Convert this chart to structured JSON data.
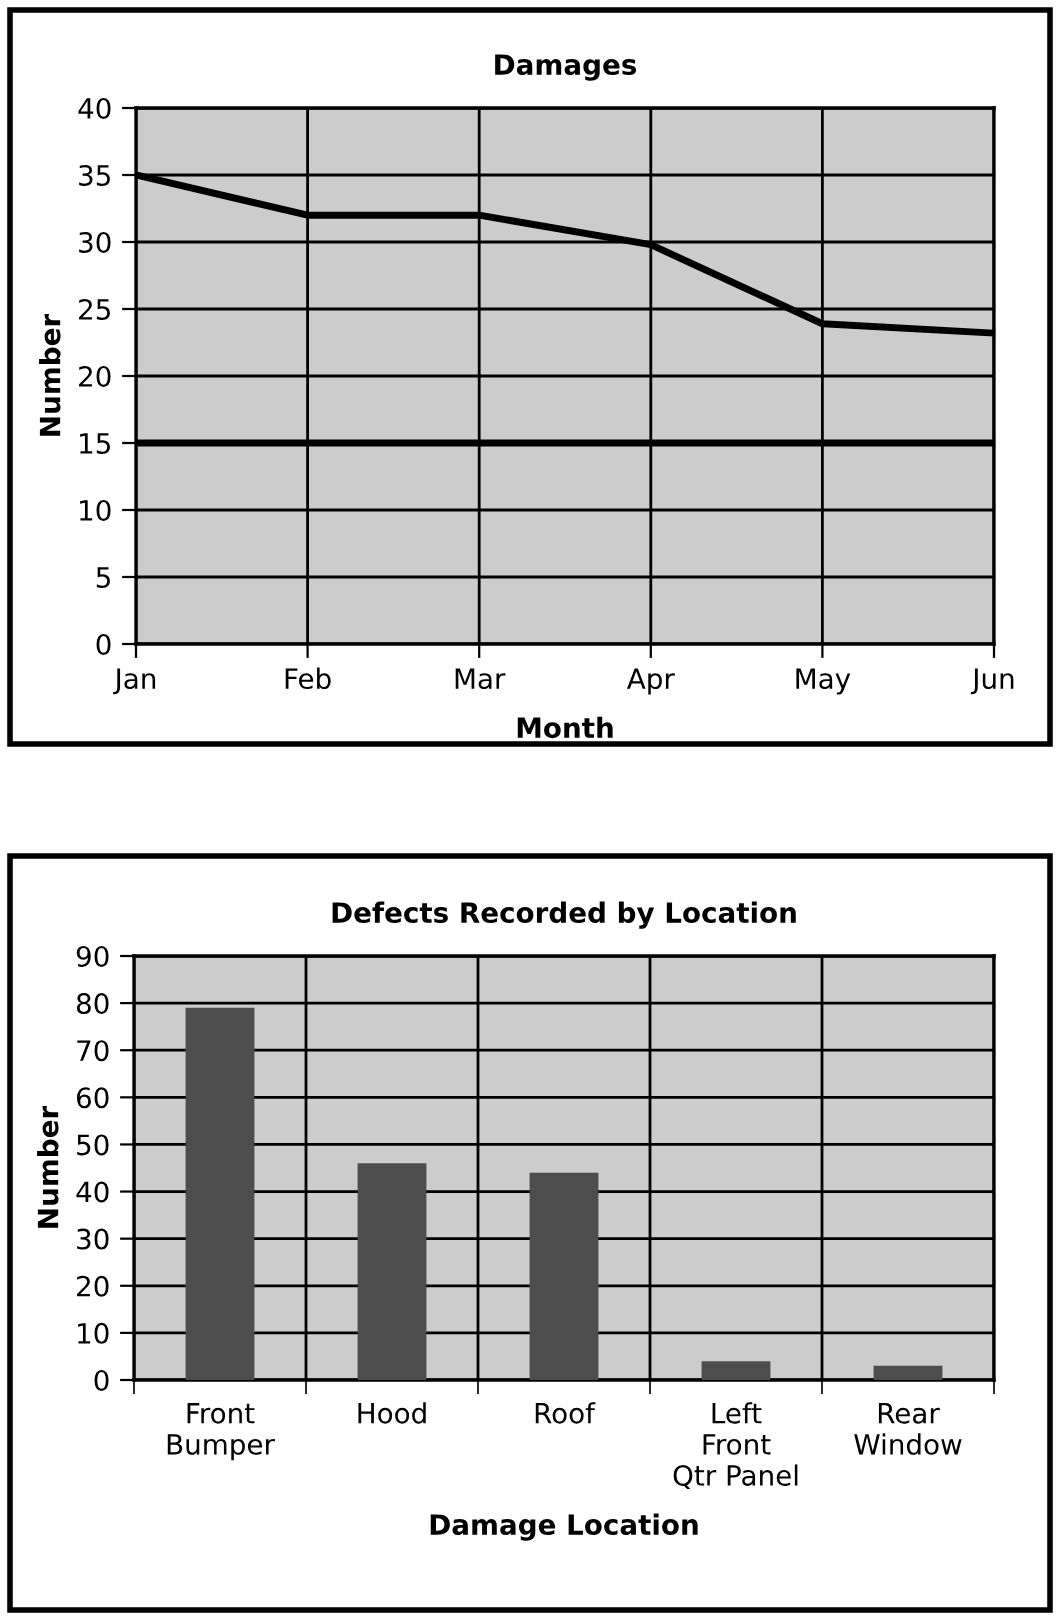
{
  "chart_data": [
    {
      "type": "line",
      "title": "Damages",
      "xlabel": "Month",
      "ylabel": "Number",
      "categories": [
        "Jan",
        "Feb",
        "Mar",
        "Apr",
        "May",
        "Jun"
      ],
      "series": [
        {
          "color": "#000000",
          "values": [
            35,
            32,
            32,
            29.8,
            23.9,
            23.2
          ]
        }
      ],
      "ref_lines": [
        {
          "axis": "y",
          "value": 15,
          "color": "#000000",
          "line_style": "solid"
        }
      ],
      "ylim": [
        0,
        40
      ],
      "yticks": [
        0,
        5,
        10,
        15,
        20,
        25,
        30,
        35,
        40
      ],
      "grid": true,
      "marker": "none",
      "line_style": "solid",
      "legend": false
    },
    {
      "type": "bar",
      "title": "Defects Recorded by Location",
      "xlabel": "Damage Location",
      "ylabel": "Number",
      "categories": [
        "Front\nBumper",
        "Hood",
        "Roof",
        "Left\nFront\nQtr Panel",
        "Rear\nWindow"
      ],
      "series": [
        {
          "color": "#4d4d4d",
          "values": [
            79,
            46,
            44,
            4,
            3
          ]
        }
      ],
      "ylim": [
        0,
        90
      ],
      "yticks": [
        0,
        10,
        20,
        30,
        40,
        50,
        60,
        70,
        80,
        90
      ],
      "grid": true,
      "legend": false
    }
  ]
}
